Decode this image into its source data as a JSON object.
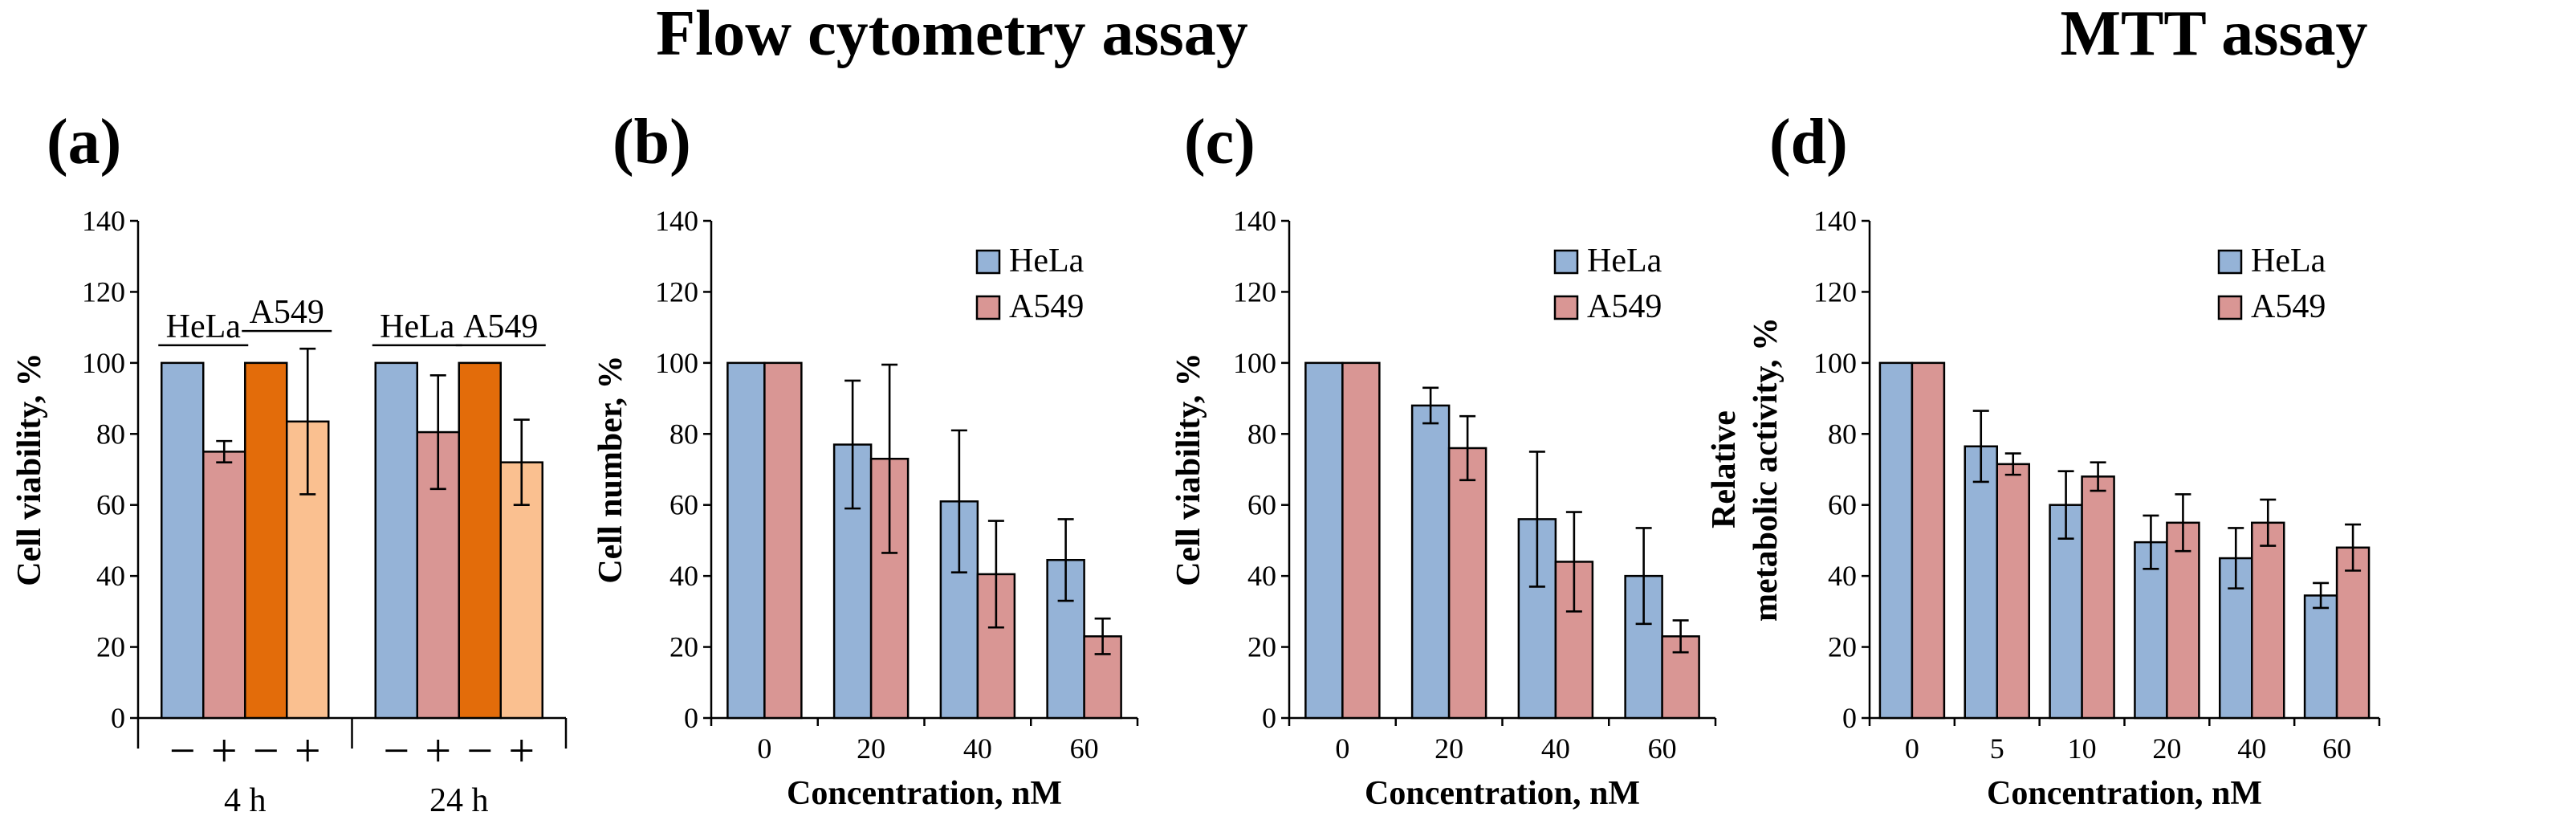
{
  "headings": {
    "flow": "Flow cytometry assay",
    "mtt": "MTT assay"
  },
  "colors": {
    "hela": "#95b3d7",
    "a549": "#d99694",
    "dark_orange": "#e36c0a",
    "light_orange": "#fac090",
    "edge": "#000000"
  },
  "chart_data": [
    {
      "id": "a",
      "panel_label": "(a)",
      "type": "bar",
      "ylabel": "Cell viability, %",
      "ylim": [
        0,
        140
      ],
      "yticks": [
        0,
        20,
        40,
        60,
        80,
        100,
        120,
        140
      ],
      "groups": [
        {
          "label": "4 h",
          "bars": [
            {
              "line": "HeLa",
              "treatment": "−",
              "value": 100,
              "error": 0,
              "color": "hela"
            },
            {
              "line": "HeLa",
              "treatment": "+",
              "value": 75,
              "error": 3,
              "color": "a549"
            },
            {
              "line": "A549",
              "treatment": "−",
              "value": 100,
              "error": 0,
              "color": "dark_orange"
            },
            {
              "line": "A549",
              "treatment": "+",
              "value": 83.5,
              "error": 20.5,
              "color": "light_orange"
            }
          ]
        },
        {
          "label": "24 h",
          "bars": [
            {
              "line": "HeLa",
              "treatment": "−",
              "value": 100,
              "error": 0,
              "color": "hela"
            },
            {
              "line": "HeLa",
              "treatment": "+",
              "value": 80.5,
              "error": 16,
              "color": "a549"
            },
            {
              "line": "A549",
              "treatment": "−",
              "value": 100,
              "error": 0,
              "color": "dark_orange"
            },
            {
              "line": "A549",
              "treatment": "+",
              "value": 72,
              "error": 12,
              "color": "light_orange"
            }
          ]
        }
      ],
      "bracket_labels": [
        "HeLa",
        "A549",
        "HeLa",
        "A549"
      ]
    },
    {
      "id": "b",
      "panel_label": "(b)",
      "type": "bar",
      "ylabel": "Cell number, %",
      "xlabel": "Concentration, nM",
      "ylim": [
        0,
        140
      ],
      "yticks": [
        0,
        20,
        40,
        60,
        80,
        100,
        120,
        140
      ],
      "categories": [
        "0",
        "20",
        "40",
        "60"
      ],
      "series": [
        {
          "name": "HeLa",
          "color": "hela",
          "values": [
            100,
            77,
            61,
            44.5
          ],
          "errors": [
            0,
            18,
            20,
            11.5
          ]
        },
        {
          "name": "A549",
          "color": "a549",
          "values": [
            100,
            73,
            40.5,
            23
          ],
          "errors": [
            0,
            26.5,
            15,
            5
          ]
        }
      ],
      "legend": "top-right"
    },
    {
      "id": "c",
      "panel_label": "(c)",
      "type": "bar",
      "ylabel": "Cell viability, %",
      "xlabel": "Concentration, nM",
      "ylim": [
        0,
        140
      ],
      "yticks": [
        0,
        20,
        40,
        60,
        80,
        100,
        120,
        140
      ],
      "categories": [
        "0",
        "20",
        "40",
        "60"
      ],
      "series": [
        {
          "name": "HeLa",
          "color": "hela",
          "values": [
            100,
            88,
            56,
            40
          ],
          "errors": [
            0,
            5,
            19,
            13.5
          ]
        },
        {
          "name": "A549",
          "color": "a549",
          "values": [
            100,
            76,
            44,
            23
          ],
          "errors": [
            0,
            9,
            14,
            4.5
          ]
        }
      ],
      "legend": "top-right"
    },
    {
      "id": "d",
      "panel_label": "(d)",
      "type": "bar",
      "ylabel_lines": [
        "Relative",
        "metabolic activity, %"
      ],
      "xlabel": "Concentration, nM",
      "ylim": [
        0,
        140
      ],
      "yticks": [
        0,
        20,
        40,
        60,
        80,
        100,
        120,
        140
      ],
      "categories": [
        "0",
        "5",
        "10",
        "20",
        "40",
        "60"
      ],
      "series": [
        {
          "name": "HeLa",
          "color": "hela",
          "values": [
            100,
            76.5,
            60,
            49.5,
            45,
            34.5
          ],
          "errors": [
            0,
            10,
            9.5,
            7.5,
            8.5,
            3.5
          ]
        },
        {
          "name": "A549",
          "color": "a549",
          "values": [
            100,
            71.5,
            68,
            55,
            55,
            48
          ],
          "errors": [
            0,
            3,
            4,
            8,
            6.5,
            6.5
          ]
        }
      ],
      "legend": "top-right"
    }
  ]
}
